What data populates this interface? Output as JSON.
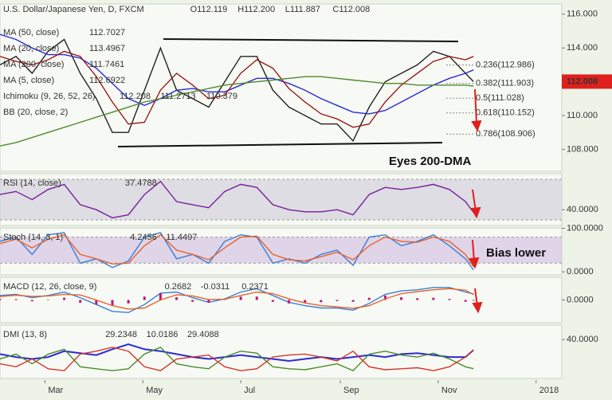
{
  "header": {
    "title": "U.S. Dollar/Japanese Yen, D, FXCM",
    "ohlc": [
      "O112.119",
      "H112.200",
      "L111.887",
      "C112.008"
    ]
  },
  "annotations": [
    "Eyes 200-DMA",
    "Bias lower"
  ],
  "chart_data": [
    {
      "type": "line",
      "x": [
        0,
        10,
        20,
        30,
        40,
        50,
        60,
        70,
        80,
        90,
        100,
        110,
        120,
        130,
        140,
        150,
        160,
        170,
        180,
        190,
        200,
        210,
        220,
        230,
        240,
        250,
        260,
        270,
        280,
        290,
        295
      ],
      "ylim": [
        106.7,
        116.6
      ],
      "yticks": [
        {
          "value": 108,
          "label": "108.000"
        },
        {
          "value": 110,
          "label": "110.000"
        },
        {
          "value": 112,
          "label": "112.000"
        },
        {
          "value": 114,
          "label": "114.000"
        },
        {
          "value": 116,
          "label": "116.000"
        }
      ],
      "series": [
        {
          "color": "#222222",
          "values": [
            113.0,
            113.5,
            112.5,
            113.8,
            114.5,
            112.5,
            111.0,
            109.0,
            109.0,
            111.5,
            114.0,
            111.5,
            111.0,
            110.5,
            112.0,
            113.5,
            113.5,
            111.5,
            110.5,
            110.0,
            109.5,
            109.5,
            108.5,
            110.5,
            112.0,
            112.5,
            113.0,
            113.8,
            113.5,
            112.5,
            112.008
          ]
        },
        {
          "name": "MA (50, close)",
          "color": "#2b2bd6",
          "values": [
            114.8,
            114.5,
            114.0,
            113.6,
            113.6,
            113.4,
            112.8,
            111.9,
            111.0,
            110.6,
            111.0,
            111.5,
            111.6,
            111.4,
            111.4,
            111.8,
            112.2,
            112.2,
            111.9,
            111.5,
            111.0,
            110.6,
            110.2,
            110.1,
            110.3,
            110.8,
            111.3,
            111.8,
            112.2,
            112.5,
            112.7027
          ]
        },
        {
          "name": "MA (20, close)",
          "color": "#9c1c1c",
          "values": [
            113.5,
            113.2,
            113.0,
            113.3,
            113.8,
            113.5,
            112.3,
            110.8,
            109.5,
            109.6,
            111.5,
            112.5,
            111.8,
            111.0,
            111.2,
            112.5,
            113.3,
            112.8,
            111.6,
            110.8,
            110.1,
            109.8,
            109.3,
            109.5,
            110.8,
            111.8,
            112.5,
            113.2,
            113.5,
            113.3,
            113.4967
          ]
        },
        {
          "name": "MA (200, close)",
          "color": "#4d8a2c",
          "values": [
            108.2,
            108.4,
            108.7,
            109.0,
            109.3,
            109.6,
            109.9,
            110.2,
            110.5,
            110.8,
            111.0,
            111.2,
            111.4,
            111.6,
            111.8,
            111.9,
            112.0,
            112.1,
            112.2,
            112.3,
            112.3,
            112.2,
            112.1,
            112.0,
            111.9,
            111.9,
            111.8,
            111.8,
            111.8,
            111.8,
            111.7461
          ]
        }
      ],
      "studies": [
        "MA (5, close)",
        "Ichimoku (9, 26, 52, 26)",
        "BB (20, close, 2)"
      ],
      "study_values": [
        112.6922,
        112.208,
        111.2713,
        110.379
      ],
      "fib_levels": [
        {
          "label": "0.236(112.986)",
          "value": 112.986
        },
        {
          "label": "0.382(111.903)",
          "value": 111.903
        },
        {
          "label": "0.5(111.028)",
          "value": 111.028
        },
        {
          "label": "0.618(110.152)",
          "value": 110.152
        },
        {
          "label": "0.786(108.906)",
          "value": 108.906
        }
      ]
    },
    {
      "type": "line",
      "title": "RSI (14, close)",
      "x": [
        0,
        10,
        20,
        30,
        40,
        50,
        60,
        70,
        80,
        90,
        100,
        110,
        120,
        130,
        140,
        150,
        160,
        170,
        180,
        190,
        200,
        210,
        220,
        230,
        240,
        250,
        260,
        270,
        280,
        290,
        295
      ],
      "ylim": [
        24.5,
        75.5
      ],
      "yticks": [
        {
          "value": 40,
          "label": "40.0000"
        }
      ],
      "band": [
        30,
        70
      ],
      "band_color": "#d6d6de",
      "series": [
        {
          "color": "#7a1f9a",
          "values": [
            55,
            58,
            50,
            60,
            65,
            45,
            40,
            32,
            35,
            55,
            68,
            48,
            45,
            42,
            58,
            65,
            62,
            45,
            40,
            38,
            38,
            40,
            35,
            55,
            62,
            60,
            62,
            65,
            60,
            48,
            37.4788
          ]
        }
      ]
    },
    {
      "type": "line",
      "title": "Stoch (14, 3, 1)",
      "x": [
        0,
        10,
        20,
        30,
        40,
        50,
        60,
        70,
        80,
        90,
        100,
        110,
        120,
        130,
        140,
        150,
        160,
        170,
        180,
        190,
        200,
        210,
        220,
        230,
        240,
        250,
        260,
        270,
        280,
        290,
        295
      ],
      "ylim": [
        -7,
        101
      ],
      "yticks": [
        {
          "value": 0,
          "label": "0.0000"
        },
        {
          "value": 100,
          "label": "100.0000"
        }
      ],
      "band": [
        20,
        80
      ],
      "band_color": "#d9cbe6",
      "series": [
        {
          "color": "#3a7fd6",
          "values": [
            70,
            80,
            40,
            85,
            90,
            20,
            30,
            10,
            25,
            80,
            90,
            30,
            40,
            20,
            70,
            85,
            80,
            20,
            30,
            20,
            40,
            50,
            15,
            80,
            85,
            60,
            70,
            85,
            60,
            30,
            4.2456
          ]
        },
        {
          "color": "#e8632a",
          "values": [
            65,
            75,
            55,
            75,
            85,
            40,
            30,
            18,
            20,
            60,
            85,
            50,
            40,
            28,
            55,
            80,
            82,
            40,
            28,
            25,
            35,
            45,
            28,
            60,
            80,
            70,
            68,
            80,
            70,
            40,
            11.4497
          ]
        }
      ]
    },
    {
      "type": "line",
      "title": "MACD (12, 26, close, 9)",
      "x": [
        0,
        10,
        20,
        30,
        40,
        50,
        60,
        70,
        80,
        90,
        100,
        110,
        120,
        130,
        140,
        150,
        160,
        170,
        180,
        190,
        200,
        210,
        220,
        230,
        240,
        250,
        260,
        270,
        280,
        290,
        295
      ],
      "ylim": [
        -1.0,
        1.0
      ],
      "yticks": [
        {
          "value": 0,
          "label": "0.0000"
        }
      ],
      "series": [
        {
          "color": "#3a7fd6",
          "values": [
            0.2,
            0.25,
            0.1,
            0.2,
            0.35,
            0.1,
            -0.2,
            -0.5,
            -0.55,
            -0.2,
            0.3,
            0.35,
            0.1,
            -0.1,
            0.05,
            0.35,
            0.5,
            0.2,
            -0.1,
            -0.25,
            -0.35,
            -0.35,
            -0.45,
            -0.15,
            0.25,
            0.4,
            0.45,
            0.55,
            0.55,
            0.35,
            0.2682
          ]
        },
        {
          "color": "#c2187a",
          "style": "bar",
          "values": [
            0.05,
            0.04,
            -0.06,
            0.02,
            0.1,
            -0.12,
            -0.2,
            -0.25,
            -0.15,
            0.15,
            0.3,
            0.12,
            -0.08,
            -0.12,
            0.02,
            0.15,
            0.15,
            -0.08,
            -0.15,
            -0.12,
            -0.1,
            -0.05,
            -0.08,
            0.1,
            0.2,
            0.12,
            0.08,
            0.1,
            0.05,
            -0.08,
            -0.0311
          ]
        },
        {
          "color": "#e8632a",
          "values": [
            0.15,
            0.21,
            0.16,
            0.18,
            0.25,
            0.22,
            0.0,
            -0.25,
            -0.4,
            -0.35,
            0.0,
            0.23,
            0.18,
            0.02,
            0.03,
            0.2,
            0.35,
            0.28,
            0.05,
            -0.13,
            -0.25,
            -0.3,
            -0.37,
            -0.25,
            0.05,
            0.28,
            0.37,
            0.45,
            0.5,
            0.43,
            0.2371
          ]
        }
      ]
    },
    {
      "type": "line",
      "title": "DMI (13, 8)",
      "x": [
        0,
        10,
        20,
        30,
        40,
        50,
        60,
        70,
        80,
        90,
        100,
        110,
        120,
        130,
        140,
        150,
        160,
        170,
        180,
        190,
        200,
        210,
        220,
        230,
        240,
        250,
        260,
        270,
        280,
        290,
        295
      ],
      "ylim": [
        0,
        54.7
      ],
      "yticks": [
        {
          "value": 40,
          "label": "40.0000"
        }
      ],
      "xlim": [
        0,
        350
      ],
      "xticks": [
        {
          "value": 28,
          "label": "Mar"
        },
        {
          "value": 89,
          "label": "May"
        },
        {
          "value": 150,
          "label": "Jul"
        },
        {
          "value": 212,
          "label": "Sep"
        },
        {
          "value": 273,
          "label": "Nov"
        },
        {
          "value": 334,
          "label": "2018"
        }
      ],
      "series": [
        {
          "color": "#2b2bd6",
          "width": 2,
          "values": [
            25,
            22,
            20,
            22,
            28,
            26,
            24,
            30,
            35,
            30,
            28,
            25,
            22,
            20,
            22,
            24,
            22,
            20,
            18,
            20,
            22,
            20,
            22,
            24,
            22,
            25,
            26,
            24,
            22,
            22,
            29.2348
          ]
        },
        {
          "color": "#4d8a2c",
          "values": [
            20,
            25,
            15,
            25,
            30,
            12,
            10,
            8,
            10,
            25,
            32,
            15,
            12,
            10,
            22,
            28,
            26,
            12,
            10,
            9,
            12,
            15,
            8,
            25,
            28,
            24,
            22,
            26,
            20,
            12,
            10.0186
          ]
        },
        {
          "color": "#d6342a",
          "values": [
            15,
            12,
            20,
            10,
            8,
            25,
            28,
            32,
            28,
            12,
            8,
            20,
            22,
            24,
            12,
            8,
            10,
            22,
            24,
            25,
            22,
            18,
            28,
            12,
            9,
            10,
            11,
            8,
            12,
            22,
            29.4088
          ]
        }
      ]
    }
  ]
}
